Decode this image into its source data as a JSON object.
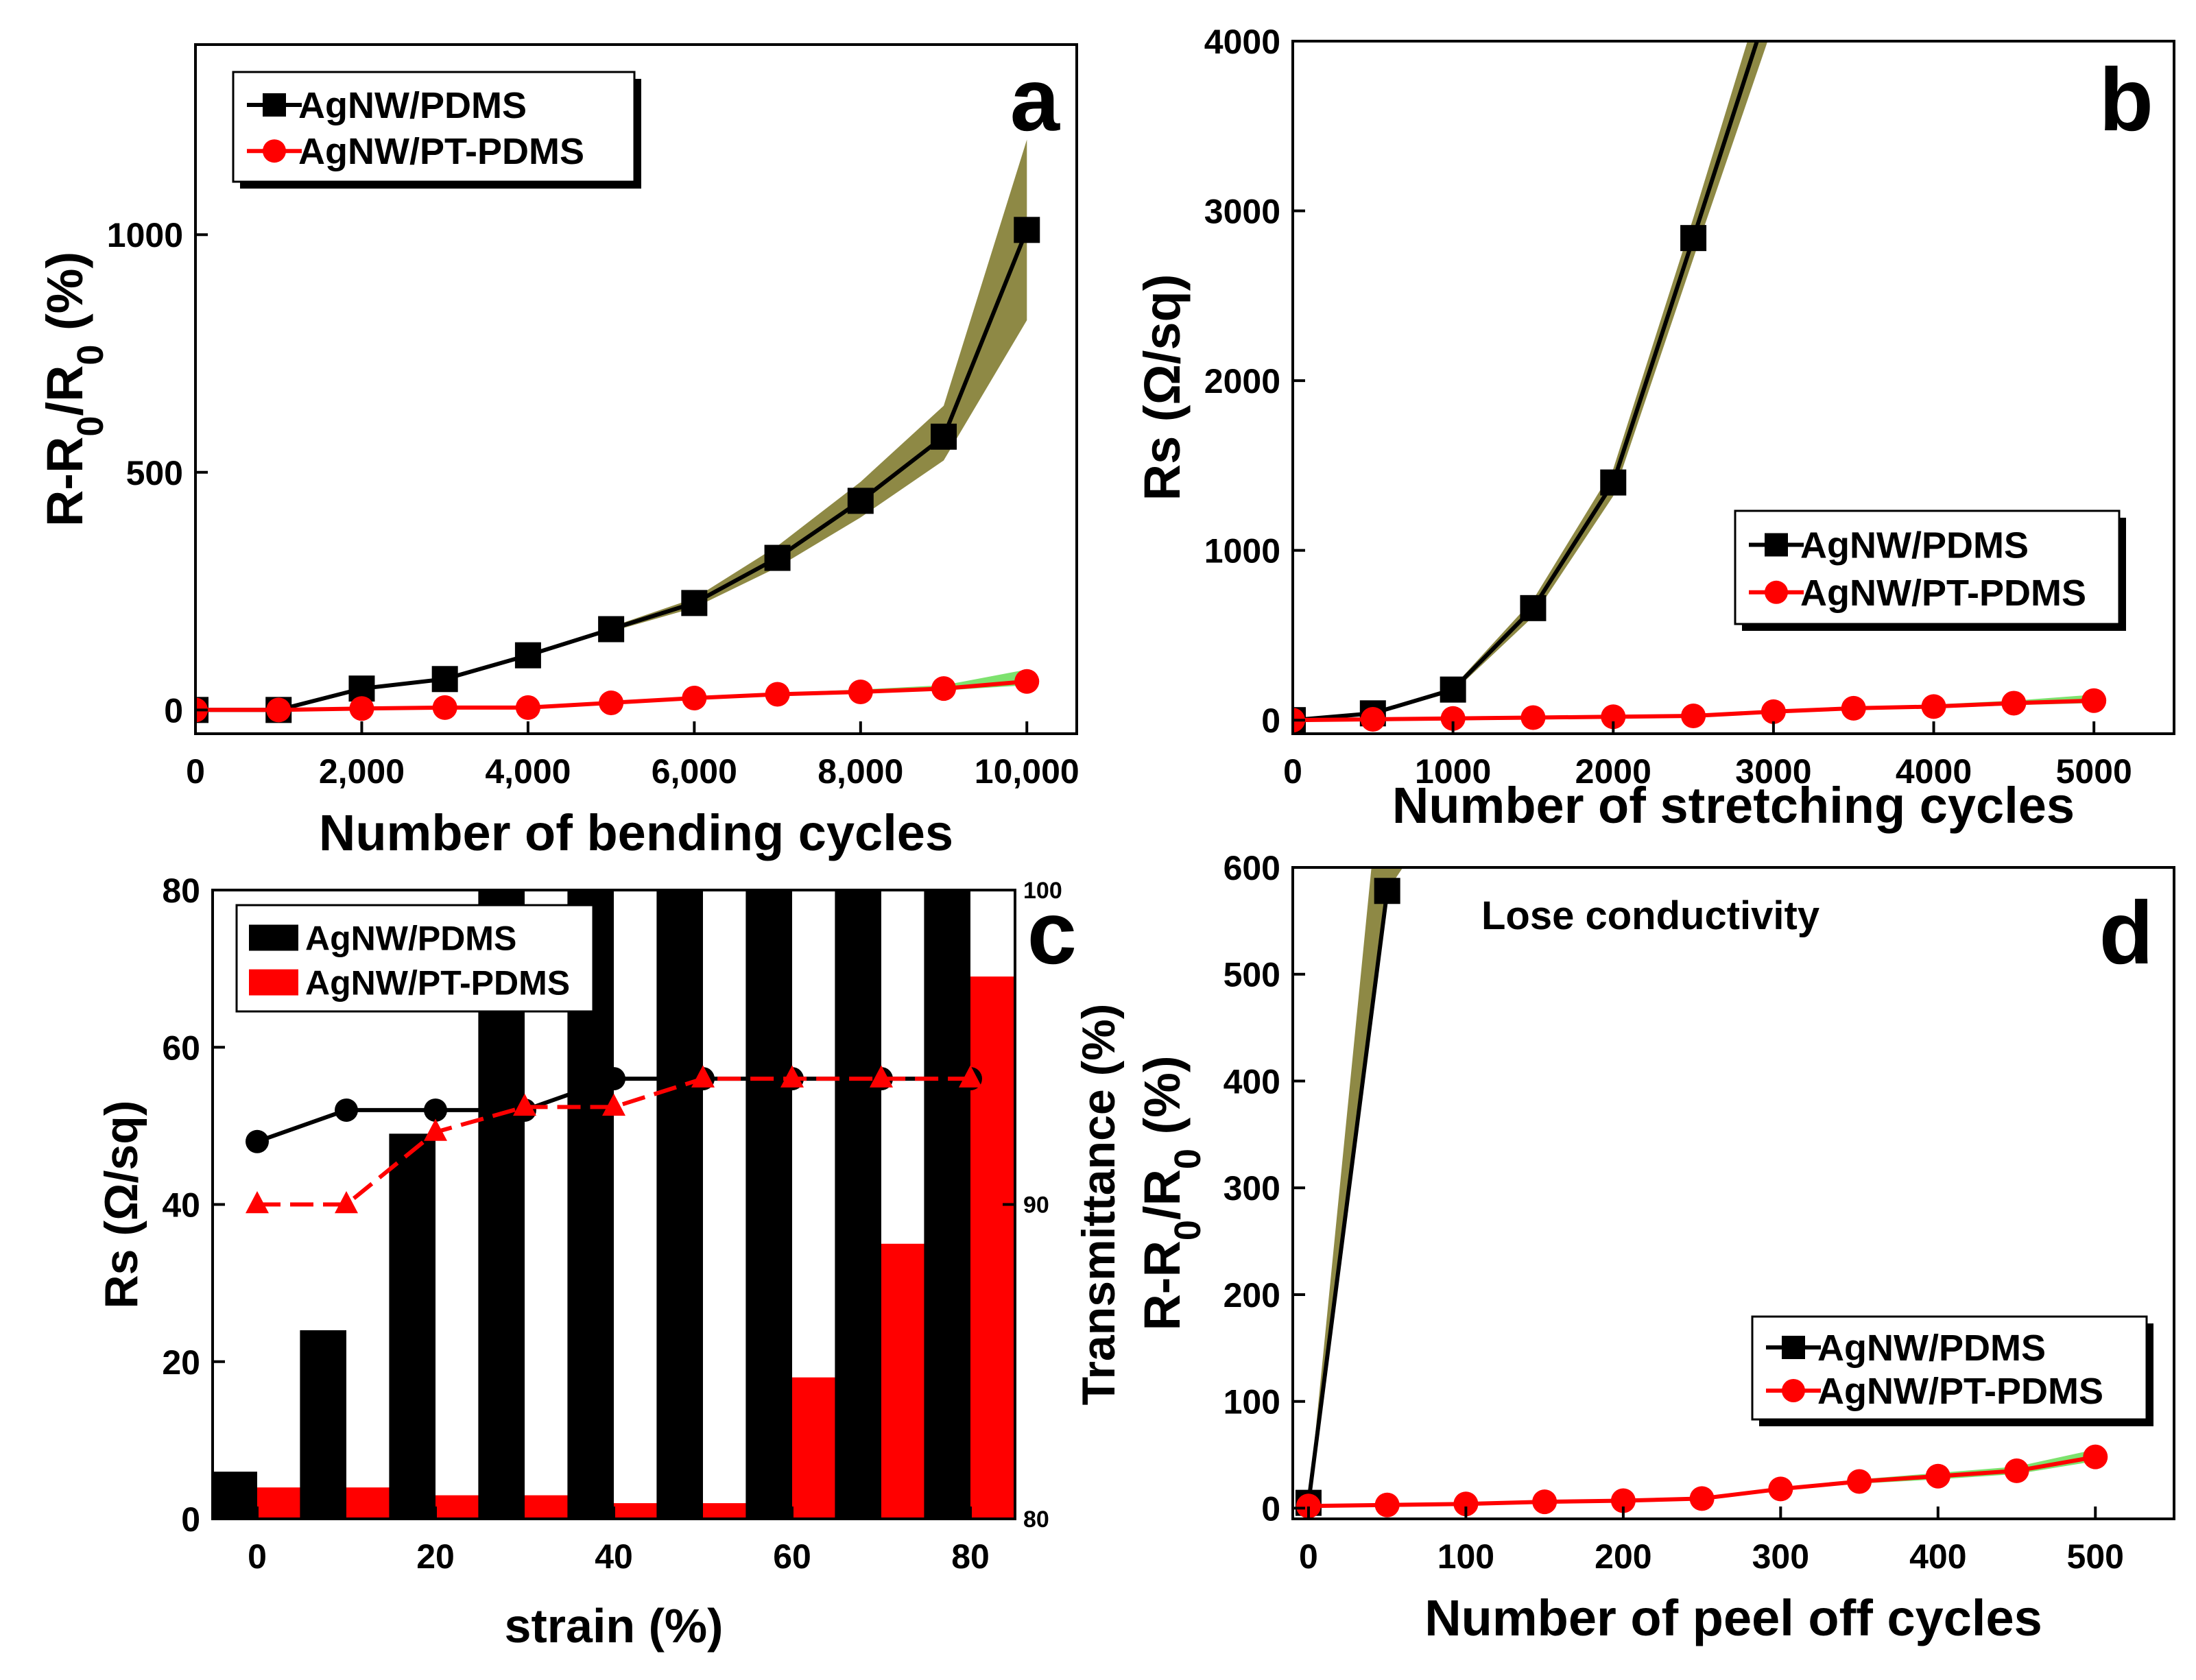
{
  "colors": {
    "black_series": "#000000",
    "red_series": "#ff0000",
    "black_band": "#7a7425",
    "red_band": "#66dd55"
  },
  "chart_data": [
    {
      "panel": "a",
      "type": "line",
      "letter": "a",
      "xlabel": "Number of bending cycles",
      "ylabel_parts": [
        "R-R",
        "0",
        "/R",
        "0",
        " (%)"
      ],
      "xlim": [
        0,
        10600
      ],
      "ylim": [
        -50,
        1400
      ],
      "xticks": [
        0,
        2000,
        4000,
        6000,
        8000,
        10000
      ],
      "xtick_labels": [
        "0",
        "2,000",
        "4,000",
        "6,000",
        "8,000",
        "10,000"
      ],
      "yticks": [
        0,
        500,
        1000
      ],
      "ytick_labels": [
        "0",
        "500",
        "1000"
      ],
      "legend_position": "top-left",
      "series": [
        {
          "name": "AgNW/PDMS",
          "color": "#000000",
          "marker": "square",
          "band_color": "#7a7425",
          "x": [
            0,
            1000,
            2000,
            3000,
            4000,
            5000,
            6000,
            7000,
            8000,
            9000,
            10000
          ],
          "y": [
            0,
            0,
            45,
            65,
            115,
            170,
            225,
            320,
            440,
            575,
            1010
          ],
          "lo": [
            0,
            0,
            45,
            65,
            115,
            165,
            215,
            300,
            405,
            525,
            820
          ],
          "hi": [
            0,
            0,
            45,
            65,
            115,
            175,
            235,
            345,
            480,
            640,
            1200
          ]
        },
        {
          "name": "AgNW/PT-PDMS",
          "color": "#ff0000",
          "marker": "circle",
          "band_color": "#66dd55",
          "x": [
            0,
            1000,
            2000,
            3000,
            4000,
            5000,
            6000,
            7000,
            8000,
            9000,
            10000
          ],
          "y": [
            0,
            0,
            3,
            5,
            5,
            15,
            25,
            33,
            38,
            45,
            60
          ],
          "lo": [
            0,
            0,
            3,
            5,
            5,
            14,
            24,
            31,
            35,
            41,
            52
          ],
          "hi": [
            0,
            0,
            3,
            5,
            5,
            16,
            27,
            36,
            43,
            52,
            85
          ]
        }
      ]
    },
    {
      "panel": "b",
      "type": "line",
      "letter": "b",
      "xlabel": "Number of stretching cycles",
      "ylabel_parts": [
        "Rs (Ω/sq)"
      ],
      "xlim": [
        0,
        5500
      ],
      "ylim": [
        -80,
        4000
      ],
      "xticks": [
        0,
        1000,
        2000,
        3000,
        4000,
        5000
      ],
      "xtick_labels": [
        "0",
        "1000",
        "2000",
        "3000",
        "4000",
        "5000"
      ],
      "yticks": [
        0,
        1000,
        2000,
        3000,
        4000
      ],
      "ytick_labels": [
        "0",
        "1000",
        "2000",
        "3000",
        "4000"
      ],
      "legend_position": "center-right",
      "series": [
        {
          "name": "AgNW/PDMS",
          "color": "#000000",
          "marker": "square",
          "band_color": "#7a7425",
          "x": [
            0,
            500,
            1000,
            1500,
            2000,
            2500,
            3000
          ],
          "y": [
            0,
            40,
            180,
            660,
            1400,
            2840,
            4300
          ],
          "lo": [
            0,
            35,
            165,
            610,
            1320,
            2720,
            4100
          ],
          "hi": [
            0,
            45,
            195,
            710,
            1480,
            2960,
            4500
          ]
        },
        {
          "name": "AgNW/PT-PDMS",
          "color": "#ff0000",
          "marker": "circle",
          "band_color": "#66dd55",
          "x": [
            0,
            500,
            1000,
            1500,
            2000,
            2500,
            3000,
            3500,
            4000,
            4500,
            5000
          ],
          "y": [
            0,
            5,
            10,
            15,
            20,
            25,
            50,
            70,
            80,
            100,
            115
          ],
          "lo": [
            0,
            5,
            10,
            15,
            20,
            25,
            45,
            62,
            70,
            88,
            100
          ],
          "hi": [
            0,
            5,
            10,
            15,
            20,
            25,
            55,
            78,
            92,
            115,
            150
          ]
        }
      ]
    },
    {
      "panel": "c",
      "type": "bar",
      "letter": "c",
      "xlabel": "strain (%)",
      "ylabel_parts": [
        "Rs (Ω/sq)"
      ],
      "ylabel_right": "Transmittance (%)",
      "xlim": [
        -5,
        85
      ],
      "ylim": [
        0,
        80
      ],
      "ylim_right": [
        80,
        100
      ],
      "xticks": [
        0,
        20,
        40,
        60,
        80
      ],
      "xtick_labels": [
        "0",
        "20",
        "40",
        "60",
        "80"
      ],
      "yticks": [
        0,
        20,
        40,
        60,
        80
      ],
      "ytick_labels": [
        "0",
        "20",
        "40",
        "60",
        "80"
      ],
      "yticks_right": [
        80,
        90,
        100
      ],
      "ytick_labels_right": [
        "80",
        "90",
        "100"
      ],
      "legend_position": "top-left",
      "categories": [
        0,
        10,
        20,
        30,
        40,
        50,
        60,
        70,
        80
      ],
      "bar_series": [
        {
          "name": "AgNW/PDMS",
          "color": "#000000",
          "values": [
            6,
            24,
            49,
            80,
            80,
            80,
            80,
            80,
            80
          ]
        },
        {
          "name": "AgNW/PT-PDMS",
          "color": "#ff0000",
          "values": [
            4,
            4,
            3,
            3,
            2,
            2,
            18,
            35,
            69
          ]
        }
      ],
      "line_series": [
        {
          "color": "#000000",
          "marker": "circle",
          "x": [
            0,
            10,
            20,
            30,
            40,
            50,
            60,
            70,
            80
          ],
          "y": [
            92,
            93,
            93,
            93,
            94,
            94,
            94,
            94,
            94
          ],
          "dashed": false
        },
        {
          "color": "#ff0000",
          "marker": "triangle",
          "x": [
            0,
            10,
            20,
            30,
            40,
            50,
            60,
            70,
            80
          ],
          "y": [
            90,
            90,
            92.3,
            93.1,
            93.1,
            94,
            94,
            94,
            94
          ],
          "dashed": true
        }
      ]
    },
    {
      "panel": "d",
      "type": "line",
      "letter": "d",
      "xlabel": "Number of peel off cycles",
      "ylabel_parts": [
        "R-R",
        "0",
        "/R",
        "0",
        " (%)"
      ],
      "annotation": "Lose conductivity",
      "xlim": [
        -10,
        550
      ],
      "ylim": [
        -10,
        600
      ],
      "xticks": [
        0,
        100,
        200,
        300,
        400,
        500
      ],
      "xtick_labels": [
        "0",
        "100",
        "200",
        "300",
        "400",
        "500"
      ],
      "yticks": [
        0,
        100,
        200,
        300,
        400,
        500,
        600
      ],
      "ytick_labels": [
        "0",
        "100",
        "200",
        "300",
        "400",
        "500",
        "600"
      ],
      "legend_position": "bottom-right",
      "series": [
        {
          "name": "AgNW/PDMS",
          "color": "#000000",
          "marker": "square",
          "band_color": "#7a7425",
          "x": [
            0,
            50
          ],
          "y": [
            5,
            578
          ],
          "lo": [
            5,
            540
          ],
          "hi": [
            5,
            620
          ],
          "band_x": [
            0,
            50,
            60,
            60,
            40
          ],
          "band_y": [
            5,
            578,
            600,
            600,
            600
          ]
        },
        {
          "name": "AgNW/PT-PDMS",
          "color": "#ff0000",
          "marker": "circle",
          "band_color": "#66dd55",
          "x": [
            0,
            50,
            100,
            150,
            200,
            250,
            300,
            350,
            400,
            450,
            500
          ],
          "y": [
            2,
            3,
            4,
            6,
            7,
            9,
            18,
            25,
            30,
            35,
            48
          ],
          "lo": [
            2,
            3,
            4,
            6,
            7,
            9,
            17,
            23,
            27,
            32,
            44
          ],
          "hi": [
            2,
            3,
            4,
            6,
            7,
            9,
            19,
            27,
            33,
            39,
            55
          ]
        }
      ]
    }
  ]
}
